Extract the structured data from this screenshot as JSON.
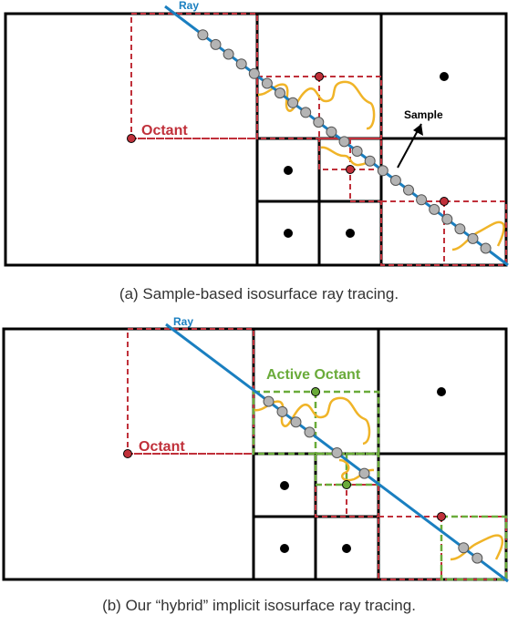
{
  "panel_a": {
    "caption": "(a) Sample-based isosurface ray tracing.",
    "labels": {
      "ray": "Ray",
      "octant": "Octant",
      "sample": "Sample"
    }
  },
  "panel_b": {
    "caption": "(b) Our “hybrid” implicit isosurface ray tracing.",
    "labels": {
      "ray": "Ray",
      "octant": "Octant",
      "active_octant": "Active Octant"
    }
  },
  "colors": {
    "ray": "#1a7fc0",
    "octant_dashed": "#c0303a",
    "active_octant_dashed": "#6aab3a",
    "isosurface": "#f0b428",
    "sample_point": "#b4b4b4",
    "grid": "#000000"
  }
}
